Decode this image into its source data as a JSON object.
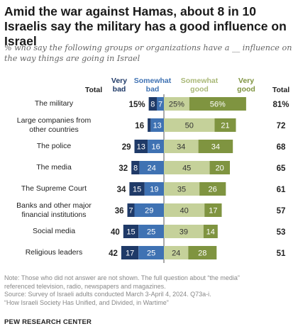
{
  "title": "Amid the war against Hamas, about 8 in 10 Israelis say the military has a good influence on Israel",
  "subtitle": "% who say the following groups or organizations have a __ influence on the way things are going in Israel",
  "headers": {
    "total_left": "Total",
    "very_bad": "Very\nbad",
    "somewhat_bad": "Somewhat\nbad",
    "somewhat_good": "Somewhat\ngood",
    "very_good": "Very\ngood",
    "total_right": "Total"
  },
  "colors": {
    "very_bad": "#1f3a68",
    "somewhat_bad": "#3f72b3",
    "somewhat_good": "#c5d19a",
    "very_good": "#7f9440"
  },
  "chart_data": {
    "type": "bar",
    "orientation": "diverging-horizontal",
    "categories": [
      "The military",
      "Large companies from other countries",
      "The police",
      "The media",
      "The Supreme Court",
      "Banks and other major financial institutions",
      "Social media",
      "Religious leaders"
    ],
    "series": [
      {
        "name": "Very bad",
        "values": [
          8,
          3,
          13,
          8,
          15,
          7,
          15,
          17
        ]
      },
      {
        "name": "Somewhat bad",
        "values": [
          7,
          13,
          16,
          24,
          19,
          29,
          25,
          25
        ]
      },
      {
        "name": "Somewhat good",
        "values": [
          25,
          50,
          34,
          45,
          35,
          40,
          39,
          24
        ]
      },
      {
        "name": "Very good",
        "values": [
          56,
          21,
          34,
          20,
          26,
          17,
          14,
          28
        ]
      }
    ],
    "total_bad": [
      15,
      16,
      29,
      32,
      34,
      36,
      40,
      42
    ],
    "total_good": [
      81,
      72,
      68,
      65,
      61,
      57,
      53,
      51
    ],
    "total_bad_labels": [
      "15%",
      "16",
      "29",
      "32",
      "34",
      "36",
      "40",
      "42"
    ],
    "total_good_labels": [
      "81%",
      "72",
      "68",
      "65",
      "61",
      "57",
      "53",
      "51"
    ],
    "bar_labels": {
      "very_bad": [
        "8",
        "",
        "13",
        "8",
        "15",
        "7",
        "15",
        "17"
      ],
      "somewhat_bad": [
        "7",
        "13",
        "16",
        "24",
        "19",
        "29",
        "25",
        "25"
      ],
      "somewhat_good": [
        "25%",
        "50",
        "34",
        "45",
        "35",
        "40",
        "39",
        "24"
      ],
      "very_good": [
        "56%",
        "21",
        "34",
        "20",
        "26",
        "17",
        "14",
        "28"
      ]
    },
    "xlim": [
      -45,
      85
    ],
    "legend": "top"
  },
  "row_labels": [
    [
      "The military"
    ],
    [
      "Large companies from",
      "other countries"
    ],
    [
      "The police"
    ],
    [
      "The media"
    ],
    [
      "The Supreme Court"
    ],
    [
      "Banks and other major",
      "financial institutions"
    ],
    [
      "Social media"
    ],
    [
      "Religious leaders"
    ]
  ],
  "notes": [
    "Note: Those who did not answer are not shown. The full question about “the media”",
    "referenced television, radio, newspapers and magazines.",
    "Source: Survey of Israeli adults conducted March 3-April 4, 2024. Q73a-i.",
    "“How Israeli Society Has Unified, and Divided, in Wartime”"
  ],
  "brand": "PEW RESEARCH CENTER"
}
